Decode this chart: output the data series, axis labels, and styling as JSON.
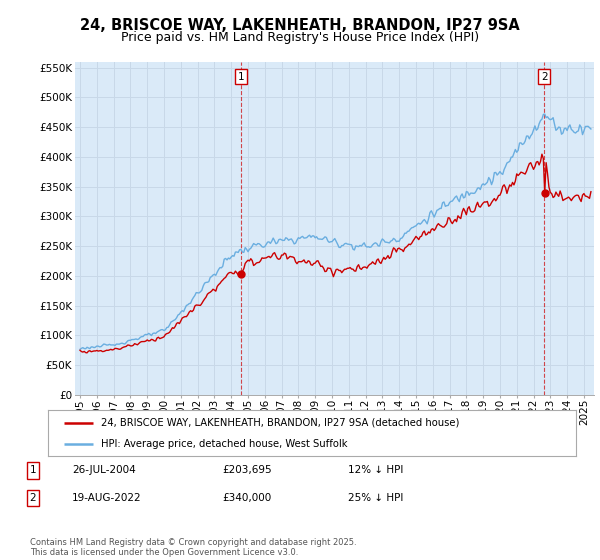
{
  "title": "24, BRISCOE WAY, LAKENHEATH, BRANDON, IP27 9SA",
  "subtitle": "Price paid vs. HM Land Registry's House Price Index (HPI)",
  "ylim": [
    0,
    560000
  ],
  "yticks": [
    0,
    50000,
    100000,
    150000,
    200000,
    250000,
    300000,
    350000,
    400000,
    450000,
    500000,
    550000
  ],
  "ytick_labels": [
    "£0",
    "£50K",
    "£100K",
    "£150K",
    "£200K",
    "£250K",
    "£300K",
    "£350K",
    "£400K",
    "£450K",
    "£500K",
    "£550K"
  ],
  "hpi_color": "#6aaee0",
  "hpi_fill_color": "#daeaf8",
  "price_color": "#cc0000",
  "marker1_x": 2004.58,
  "marker2_x": 2022.63,
  "marker1_price": 203695,
  "marker2_price": 340000,
  "legend_line1": "24, BRISCOE WAY, LAKENHEATH, BRANDON, IP27 9SA (detached house)",
  "legend_line2": "HPI: Average price, detached house, West Suffolk",
  "footnote": "Contains HM Land Registry data © Crown copyright and database right 2025.\nThis data is licensed under the Open Government Licence v3.0.",
  "x_start_year": 1995,
  "x_end_year": 2025,
  "background_color": "#ffffff",
  "grid_color": "#c8d8e8",
  "title_fontsize": 10.5,
  "subtitle_fontsize": 9,
  "tick_fontsize": 7.5
}
